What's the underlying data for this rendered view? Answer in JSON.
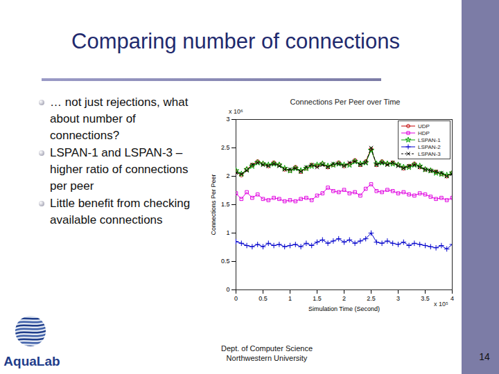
{
  "slide": {
    "title": "Comparing number of connections",
    "bullets": [
      "… not just rejections, what about number of connections?",
      "LSPAN-1 and LSPAN-3 – higher ratio of connections per peer",
      "Little benefit from checking available connections"
    ],
    "logo": "AquaLab",
    "footer": [
      "Dept. of Computer Science",
      "Northwestern University"
    ],
    "page": "14"
  },
  "chart_data": {
    "type": "line",
    "title": "Connections Per Peer over Time",
    "x_label": "Simulation Time (Second)",
    "y_label": "Connections Per Peer",
    "annotations": [
      {
        "text": "x 10⁶",
        "axis": "y"
      },
      {
        "text": "x 10⁵",
        "axis": "x"
      }
    ],
    "x": [
      0,
      0.1,
      0.2,
      0.3,
      0.4,
      0.5,
      0.6,
      0.7,
      0.8,
      0.9,
      1,
      1.1,
      1.2,
      1.3,
      1.4,
      1.5,
      1.6,
      1.7,
      1.8,
      1.9,
      2,
      2.1,
      2.2,
      2.3,
      2.4,
      2.5,
      2.6,
      2.7,
      2.8,
      2.9,
      3,
      3.1,
      3.2,
      3.3,
      3.4,
      3.5,
      3.6,
      3.7,
      3.8,
      3.9,
      4
    ],
    "series": [
      {
        "name": "UDP",
        "color": "#c00000",
        "marker": "circle",
        "line_style": "solid",
        "values": [
          2.08,
          2.02,
          2.12,
          2.2,
          2.26,
          2.22,
          2.18,
          2.24,
          2.2,
          2.12,
          2.1,
          2.16,
          2.08,
          2.14,
          2.2,
          2.18,
          2.22,
          2.16,
          2.2,
          2.24,
          2.18,
          2.22,
          2.28,
          2.2,
          2.26,
          2.48,
          2.2,
          2.26,
          2.22,
          2.24,
          2.2,
          2.14,
          2.18,
          2.22,
          2.16,
          2.12,
          2.1,
          2.08,
          2.04,
          2.0,
          2.06
        ]
      },
      {
        "name": "HDP",
        "color": "#e000e0",
        "marker": "square",
        "line_style": "solid",
        "values": [
          1.7,
          1.6,
          1.72,
          1.62,
          1.68,
          1.6,
          1.58,
          1.62,
          1.6,
          1.56,
          1.58,
          1.56,
          1.6,
          1.62,
          1.58,
          1.66,
          1.7,
          1.8,
          1.74,
          1.72,
          1.76,
          1.7,
          1.72,
          1.66,
          1.78,
          1.86,
          1.74,
          1.72,
          1.76,
          1.74,
          1.7,
          1.72,
          1.68,
          1.66,
          1.7,
          1.68,
          1.64,
          1.6,
          1.62,
          1.58,
          1.62
        ]
      },
      {
        "name": "LSPAN-1",
        "color": "#00a000",
        "marker": "star",
        "line_style": "solid",
        "values": [
          2.1,
          2.04,
          2.12,
          2.18,
          2.24,
          2.22,
          2.2,
          2.22,
          2.2,
          2.14,
          2.1,
          2.14,
          2.1,
          2.14,
          2.18,
          2.2,
          2.22,
          2.18,
          2.2,
          2.22,
          2.2,
          2.2,
          2.26,
          2.22,
          2.24,
          2.46,
          2.22,
          2.24,
          2.22,
          2.22,
          2.2,
          2.16,
          2.16,
          2.2,
          2.18,
          2.12,
          2.1,
          2.06,
          2.04,
          2.02,
          2.06
        ]
      },
      {
        "name": "LSPAN-2",
        "color": "#0000cc",
        "marker": "plus",
        "line_style": "solid",
        "values": [
          0.85,
          0.82,
          0.78,
          0.76,
          0.8,
          0.76,
          0.82,
          0.78,
          0.8,
          0.76,
          0.78,
          0.8,
          0.76,
          0.82,
          0.78,
          0.84,
          0.88,
          0.82,
          0.86,
          0.9,
          0.84,
          0.88,
          0.82,
          0.86,
          0.9,
          1.0,
          0.84,
          0.82,
          0.86,
          0.82,
          0.8,
          0.84,
          0.78,
          0.82,
          0.8,
          0.78,
          0.76,
          0.74,
          0.78,
          0.72,
          0.8
        ]
      },
      {
        "name": "LSPAN-3",
        "color": "#000000",
        "marker": "times",
        "line_style": "dashed",
        "values": [
          2.06,
          2.04,
          2.1,
          2.2,
          2.24,
          2.2,
          2.18,
          2.22,
          2.18,
          2.12,
          2.12,
          2.14,
          2.08,
          2.16,
          2.2,
          2.16,
          2.2,
          2.16,
          2.22,
          2.22,
          2.18,
          2.24,
          2.26,
          2.2,
          2.24,
          2.5,
          2.2,
          2.24,
          2.2,
          2.24,
          2.18,
          2.14,
          2.18,
          2.2,
          2.16,
          2.12,
          2.1,
          2.08,
          2.06,
          2.0,
          2.04
        ]
      }
    ],
    "xlim": [
      0,
      4
    ],
    "xticks": [
      0,
      0.5,
      1,
      1.5,
      2,
      2.5,
      3,
      3.5,
      4
    ],
    "ylim": [
      0,
      3
    ],
    "yticks": [
      0,
      0.5,
      1,
      1.5,
      2,
      2.5,
      3
    ],
    "grid": false,
    "legend": "top-right"
  }
}
